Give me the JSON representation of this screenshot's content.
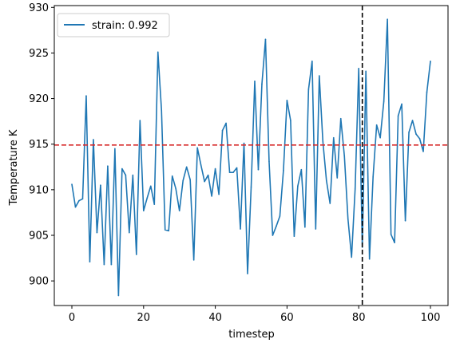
{
  "chart_data": {
    "type": "line",
    "xlabel": "timestep",
    "ylabel": "Temperature K",
    "xlim": [
      -4.9,
      104.9
    ],
    "ylim": [
      897.3,
      930.2
    ],
    "xticks": [
      0,
      20,
      40,
      60,
      80,
      100
    ],
    "yticks": [
      900,
      905,
      910,
      915,
      920,
      925,
      930
    ],
    "grid": false,
    "legend_position": "upper left",
    "series": [
      {
        "name": "strain: 0.992",
        "color": "#1f77b4",
        "x": [
          0,
          1,
          2,
          3,
          4,
          5,
          6,
          7,
          8,
          9,
          10,
          11,
          12,
          13,
          14,
          15,
          16,
          17,
          18,
          19,
          20,
          21,
          22,
          23,
          24,
          25,
          26,
          27,
          28,
          29,
          30,
          31,
          32,
          33,
          34,
          35,
          36,
          37,
          38,
          39,
          40,
          41,
          42,
          43,
          44,
          45,
          46,
          47,
          48,
          49,
          50,
          51,
          52,
          53,
          54,
          55,
          56,
          57,
          58,
          59,
          60,
          61,
          62,
          63,
          64,
          65,
          66,
          67,
          68,
          69,
          70,
          71,
          72,
          73,
          74,
          75,
          76,
          77,
          78,
          79,
          80,
          81,
          82,
          83,
          84,
          85,
          86,
          87,
          88,
          89,
          90,
          91,
          92,
          93,
          94,
          95,
          96,
          97,
          98,
          99,
          100
        ],
        "values": [
          910.6,
          908.1,
          908.8,
          909.0,
          920.3,
          902.1,
          915.5,
          905.3,
          910.5,
          901.8,
          912.6,
          901.8,
          914.5,
          898.4,
          912.3,
          911.6,
          905.3,
          911.6,
          902.9,
          917.6,
          907.7,
          909.1,
          910.4,
          908.4,
          925.1,
          918.7,
          905.6,
          905.5,
          911.5,
          910.1,
          907.7,
          911.0,
          912.5,
          911.1,
          902.3,
          914.6,
          912.7,
          910.9,
          911.6,
          909.3,
          912.3,
          909.5,
          916.5,
          917.3,
          911.9,
          911.9,
          912.4,
          905.7,
          915.1,
          900.8,
          910.3,
          921.9,
          912.2,
          921.6,
          926.5,
          913.1,
          905.0,
          906.0,
          907.1,
          912.1,
          919.8,
          917.6,
          904.9,
          910.4,
          912.2,
          905.9,
          921.0,
          924.1,
          905.7,
          922.5,
          915.3,
          911.0,
          908.5,
          915.7,
          911.3,
          917.8,
          913.7,
          906.8,
          902.6,
          910.1,
          923.3,
          903.7,
          923.0,
          902.4,
          911.4,
          917.1,
          915.7,
          919.7,
          928.7,
          905.1,
          904.2,
          918.1,
          919.4,
          906.6,
          916.3,
          917.6,
          916.1,
          915.6,
          914.2,
          920.7,
          924.1
        ]
      }
    ],
    "hlines": [
      {
        "y": 914.9,
        "color": "#d62728",
        "style": "dashed"
      }
    ],
    "vlines": [
      {
        "x": 81,
        "color": "#000000",
        "style": "dashed"
      }
    ]
  }
}
